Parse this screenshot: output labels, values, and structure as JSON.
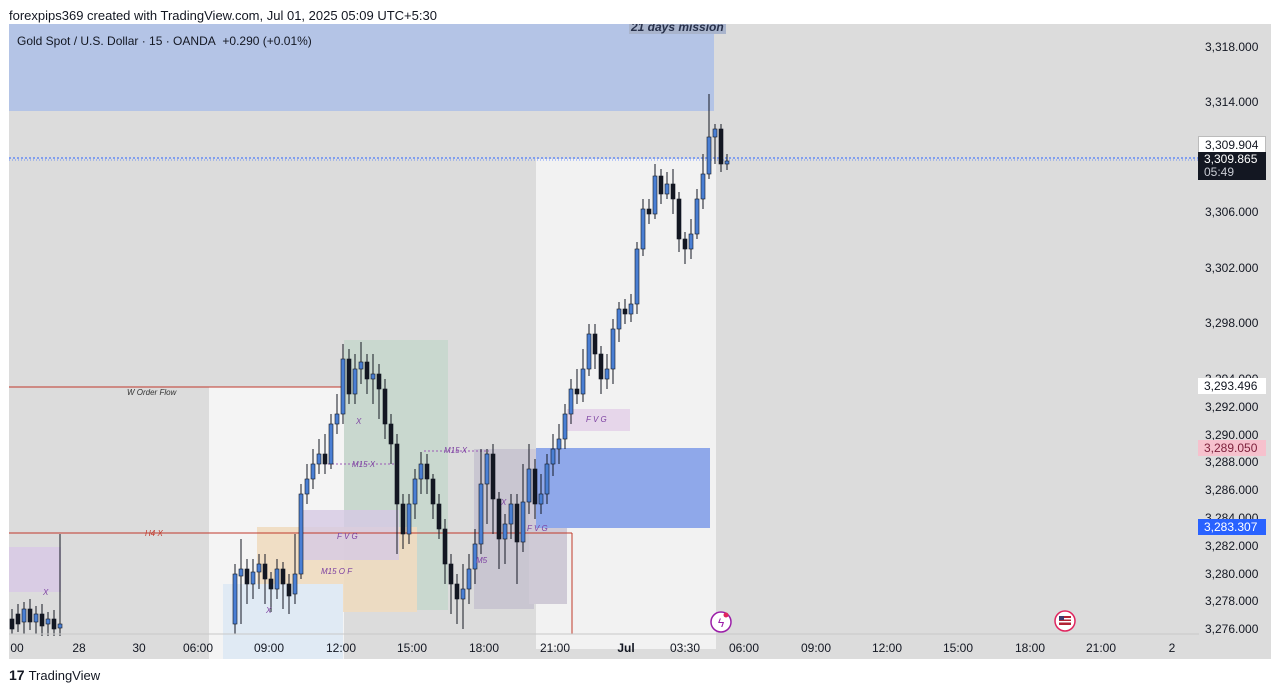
{
  "header": {
    "created_text": "forexpips369 created with TradingView.com, Jul 01, 2025 05:09 UTC+5:30"
  },
  "chart": {
    "symbol_title": "Gold Spot / U.S. Dollar · 15 · OANDA",
    "change_text": "+0.290 (+0.01%)",
    "mission_label": "21 days mission",
    "price_axis_labels": [
      "3,318.000",
      "3,314.000",
      "3,306.000",
      "3,302.000",
      "3,298.000",
      "3,294.000",
      "3,292.000",
      "3,290.000",
      "3,288.000",
      "3,286.000",
      "3,284.000",
      "3,282.000",
      "3,280.000",
      "3,278.000",
      "3,276.000"
    ],
    "time_axis_labels": [
      "00",
      "28",
      "30",
      "06:00",
      "09:00",
      "12:00",
      "15:00",
      "18:00",
      "21:00",
      "Jul",
      "03:30",
      "06:00",
      "09:00",
      "12:00",
      "15:00",
      "18:00",
      "21:00",
      "2"
    ],
    "price_badges": {
      "line_price": "3,309.904",
      "last_price": "3,309.865",
      "countdown": "05:49",
      "level_1": "3,293.496",
      "level_2": "3,289.050",
      "level_3": "3,283.307"
    },
    "annotations": {
      "w_order_flow": "W Order Flow",
      "h4_x": "H4 X",
      "fvg_1": "F V G",
      "fvg_2": "F V G",
      "fvg_3": "F V G",
      "m15_x_1": "M15 X",
      "m15_x_2": "M15 X",
      "m15_of": "M15 O F",
      "x_1": "X",
      "x_2": "X",
      "x_3": "X",
      "x_4": "X",
      "m5": "M5"
    },
    "colors": {
      "background": "#dcdcdc",
      "up_candle": "#4a7fd4",
      "down_candle": "#131722",
      "mission_zone": "#b4c4e6",
      "demand_zone": "#8fa8ea",
      "price_line": "#2962ff"
    }
  },
  "footer": {
    "brand": "TradingView",
    "logo_glyph": "17"
  }
}
